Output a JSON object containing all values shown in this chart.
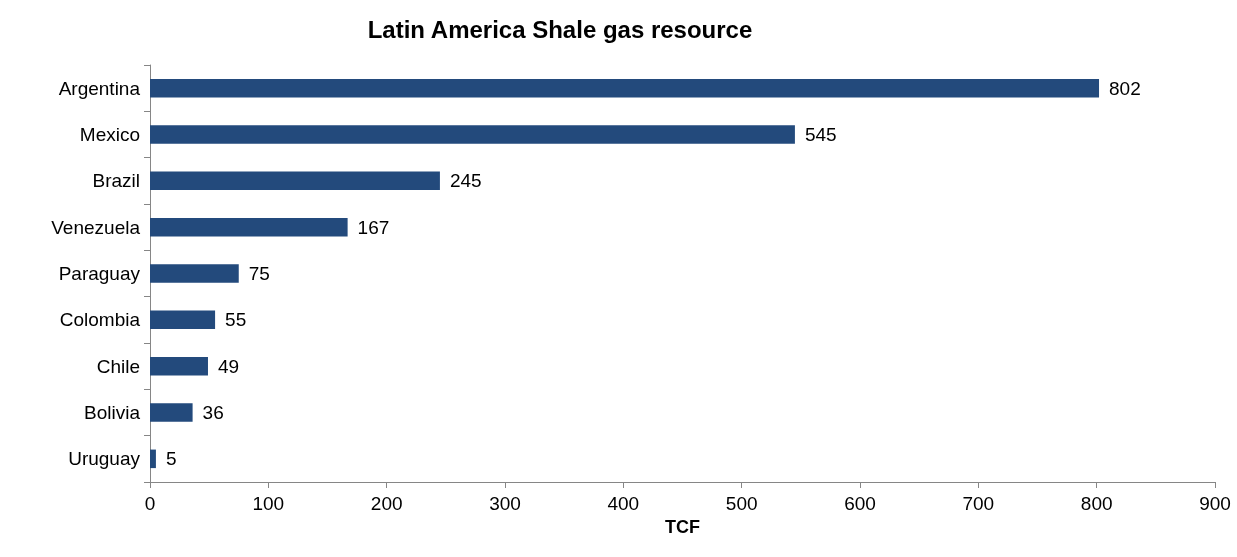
{
  "chart_data": {
    "type": "bar",
    "orientation": "horizontal",
    "title": "Latin America Shale gas resource",
    "xlabel": "TCF",
    "categories": [
      "Argentina",
      "Mexico",
      "Brazil",
      "Venezuela",
      "Paraguay",
      "Colombia",
      "Chile",
      "Bolivia",
      "Uruguay"
    ],
    "values": [
      802,
      545,
      245,
      167,
      75,
      55,
      49,
      36,
      5
    ],
    "color": "#234a7c",
    "xlim": [
      0,
      900
    ],
    "xticks": [
      0,
      100,
      200,
      300,
      400,
      500,
      600,
      700,
      800,
      900
    ],
    "data_labels": true
  }
}
